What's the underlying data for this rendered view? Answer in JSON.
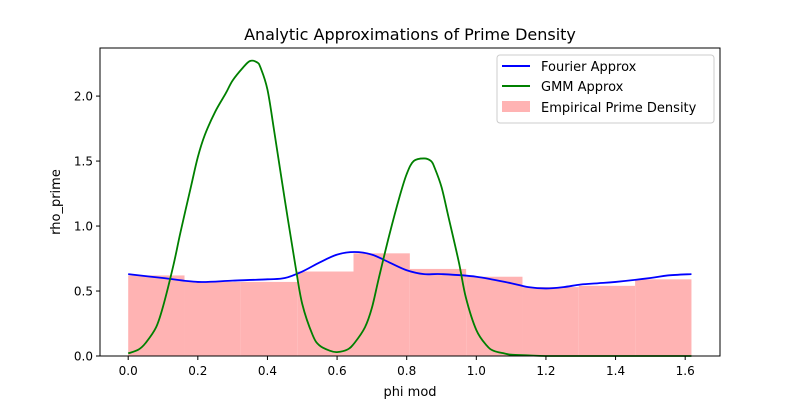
{
  "chart_data": {
    "type": "line",
    "title": "Analytic Approximations of Prime Density",
    "xlabel": "phi mod",
    "ylabel": "rho_prime",
    "xlim": [
      -0.081,
      1.7
    ],
    "ylim": [
      0.0,
      2.37
    ],
    "xticks": [
      0.0,
      0.2,
      0.4,
      0.6,
      0.8,
      1.0,
      1.2,
      1.4,
      1.6
    ],
    "xtick_labels": [
      "0.0",
      "0.2",
      "0.4",
      "0.6",
      "0.8",
      "1.0",
      "1.2",
      "1.4",
      "1.6"
    ],
    "yticks": [
      0.0,
      0.5,
      1.0,
      1.5,
      2.0
    ],
    "ytick_labels": [
      "0.0",
      "0.5",
      "1.0",
      "1.5",
      "2.0"
    ],
    "grid": false,
    "legend_position": "upper right",
    "histogram": {
      "name": "Empirical Prime Density",
      "color": "#ffb3b3",
      "bin_edges": [
        0.0,
        0.1618,
        0.3236,
        0.4854,
        0.6472,
        0.809,
        0.9708,
        1.1326,
        1.2944,
        1.4562,
        1.618
      ],
      "values": [
        0.62,
        0.57,
        0.57,
        0.65,
        0.79,
        0.67,
        0.61,
        0.53,
        0.54,
        0.59
      ]
    },
    "series": [
      {
        "name": "Fourier Approx",
        "color": "#0000ff",
        "x": [
          0.0,
          0.1,
          0.2,
          0.3,
          0.4,
          0.45,
          0.5,
          0.55,
          0.6,
          0.65,
          0.7,
          0.75,
          0.8,
          0.85,
          0.9,
          1.0,
          1.1,
          1.15,
          1.2,
          1.25,
          1.3,
          1.35,
          1.4,
          1.5,
          1.55,
          1.618
        ],
        "y": [
          0.63,
          0.6,
          0.57,
          0.58,
          0.59,
          0.6,
          0.65,
          0.72,
          0.78,
          0.8,
          0.78,
          0.72,
          0.66,
          0.63,
          0.63,
          0.61,
          0.56,
          0.53,
          0.52,
          0.53,
          0.55,
          0.56,
          0.57,
          0.6,
          0.62,
          0.63
        ]
      },
      {
        "name": "GMM Approx",
        "color": "#008000",
        "x": [
          0.0,
          0.03,
          0.05,
          0.08,
          0.1,
          0.13,
          0.15,
          0.18,
          0.2,
          0.22,
          0.25,
          0.28,
          0.3,
          0.33,
          0.35,
          0.37,
          0.38,
          0.4,
          0.42,
          0.45,
          0.48,
          0.5,
          0.53,
          0.55,
          0.58,
          0.6,
          0.63,
          0.65,
          0.68,
          0.7,
          0.72,
          0.75,
          0.78,
          0.8,
          0.82,
          0.85,
          0.87,
          0.88,
          0.9,
          0.92,
          0.95,
          0.97,
          1.0,
          1.03,
          1.05,
          1.08,
          1.1,
          1.15,
          1.2,
          1.3,
          1.4,
          1.5,
          1.618
        ],
        "y": [
          0.02,
          0.05,
          0.1,
          0.22,
          0.38,
          0.7,
          0.95,
          1.3,
          1.53,
          1.7,
          1.88,
          2.02,
          2.12,
          2.22,
          2.27,
          2.26,
          2.22,
          2.05,
          1.72,
          1.2,
          0.7,
          0.4,
          0.16,
          0.08,
          0.04,
          0.03,
          0.05,
          0.1,
          0.22,
          0.37,
          0.6,
          0.93,
          1.23,
          1.4,
          1.5,
          1.52,
          1.5,
          1.45,
          1.3,
          1.07,
          0.72,
          0.45,
          0.2,
          0.08,
          0.04,
          0.02,
          0.01,
          0.005,
          0.0,
          0.0,
          0.0,
          0.0,
          0.0
        ]
      }
    ]
  }
}
